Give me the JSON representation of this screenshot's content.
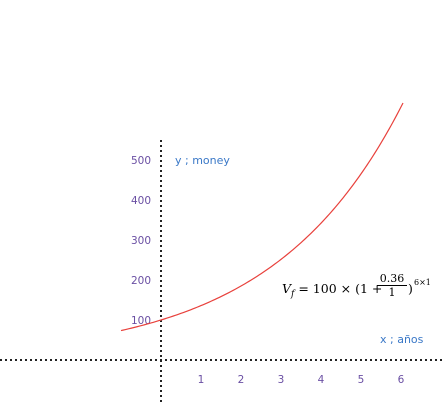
{
  "chart_data": {
    "type": "line",
    "xlabel": "x ; años",
    "ylabel": "y ; money",
    "x_ticks": [
      "1",
      "2",
      "3",
      "4",
      "5",
      "6"
    ],
    "y_ticks": [
      "100",
      "200",
      "300",
      "400",
      "500"
    ],
    "xlim": [
      -1,
      7
    ],
    "ylim": [
      -100,
      900
    ],
    "grid": false,
    "series": [
      {
        "color": "#e8413c",
        "formula": "100*(1+0.36)^x",
        "x": [
          -1,
          -0.5,
          0,
          0.5,
          1,
          1.5,
          2,
          2.5,
          3,
          3.5,
          4,
          4.5,
          5,
          5.5,
          6
        ],
        "y": [
          73.5,
          85.7,
          100,
          116.6,
          136,
          158.6,
          185,
          215.7,
          251.5,
          293.3,
          342.1,
          398.9,
          465.3,
          542.6,
          632.8
        ]
      }
    ],
    "annotation": {
      "lhs": "V",
      "lhs_sub": "f",
      "middle": " = 100 × (1 + ",
      "numerator": "0.36",
      "denominator": "1",
      "close": ")",
      "exponent": "6×1"
    },
    "axis_color": "#222222",
    "tick_color": "#6a4fa3",
    "label_color": "#3a78c7"
  }
}
